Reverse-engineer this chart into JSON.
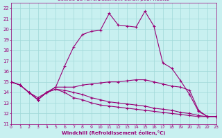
{
  "xlabel": "Windchill (Refroidissement éolien,°C)",
  "background_color": "#c8f0f0",
  "grid_color": "#a0d8d8",
  "line_color": "#990077",
  "xlim": [
    0,
    23
  ],
  "ylim": [
    11,
    22.5
  ],
  "xticks": [
    0,
    1,
    2,
    3,
    4,
    5,
    6,
    7,
    8,
    9,
    10,
    11,
    12,
    13,
    14,
    15,
    16,
    17,
    18,
    19,
    20,
    21,
    22,
    23
  ],
  "yticks": [
    11,
    12,
    13,
    14,
    15,
    16,
    17,
    18,
    19,
    20,
    21,
    22
  ],
  "line1_x": [
    0,
    1,
    2,
    3,
    4,
    5,
    6,
    7,
    8,
    9,
    10,
    11,
    12,
    13,
    14,
    15,
    16,
    17,
    18,
    19,
    20,
    21,
    22,
    23
  ],
  "line1_y": [
    15.0,
    14.7,
    14.0,
    13.3,
    14.0,
    14.5,
    16.5,
    18.3,
    19.5,
    19.8,
    19.9,
    21.5,
    20.4,
    20.3,
    20.2,
    21.7,
    20.3,
    16.8,
    16.3,
    15.1,
    13.8,
    12.2,
    11.7,
    11.7
  ],
  "line2_x": [
    0,
    1,
    2,
    3,
    4,
    5,
    6,
    7,
    8,
    9,
    10,
    11,
    12,
    13,
    14,
    15,
    16,
    17,
    18,
    19,
    20,
    21,
    22,
    23
  ],
  "line2_y": [
    15.0,
    14.7,
    14.0,
    13.3,
    14.0,
    14.5,
    14.5,
    14.5,
    14.7,
    14.8,
    14.9,
    15.0,
    15.0,
    15.1,
    15.2,
    15.2,
    15.0,
    14.8,
    14.6,
    14.5,
    14.2,
    12.3,
    11.7,
    11.7
  ],
  "line3_x": [
    0,
    1,
    2,
    3,
    4,
    5,
    6,
    7,
    8,
    9,
    10,
    11,
    12,
    13,
    14,
    15,
    16,
    17,
    18,
    19,
    20,
    21,
    22,
    23
  ],
  "line3_y": [
    15.0,
    14.7,
    14.0,
    13.3,
    14.0,
    14.3,
    14.2,
    14.0,
    13.8,
    13.5,
    13.3,
    13.1,
    13.0,
    12.9,
    12.8,
    12.7,
    12.5,
    12.4,
    12.3,
    12.1,
    12.0,
    11.8,
    11.7,
    11.7
  ],
  "line4_x": [
    0,
    1,
    2,
    3,
    4,
    5,
    6,
    7,
    8,
    9,
    10,
    11,
    12,
    13,
    14,
    15,
    16,
    17,
    18,
    19,
    20,
    21,
    22,
    23
  ],
  "line4_y": [
    15.0,
    14.7,
    14.0,
    13.5,
    14.0,
    14.3,
    14.0,
    13.5,
    13.3,
    13.0,
    12.8,
    12.7,
    12.6,
    12.5,
    12.4,
    12.3,
    12.2,
    12.1,
    12.0,
    11.9,
    11.8,
    11.7,
    11.7,
    11.7
  ]
}
